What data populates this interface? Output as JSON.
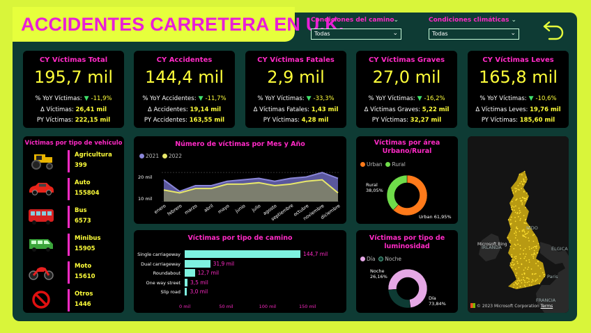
{
  "header": {
    "title": "ACCIDENTES CARRETERA EN U.K.",
    "filters": [
      {
        "label": "Condiciones del camino",
        "value": "Todas"
      },
      {
        "label": "Condiciones climáticas",
        "value": "Todas"
      }
    ],
    "back_icon": "undo-arrow-icon"
  },
  "kpis": [
    {
      "title": "CY Víctimas Total",
      "value": "195,7 mil",
      "l1_label": "% YoY Víctimas:",
      "l1_value": "-11,9%",
      "l2_label": "Δ Víctimas:",
      "l2_value": "26,41 mil",
      "l3_label": "PY Víctimas:",
      "l3_value": "222,15 mil"
    },
    {
      "title": "CY Accidentes",
      "value": "144,4 mil",
      "l1_label": "% YoY Accidentes:",
      "l1_value": "-11,7%",
      "l2_label": "Δ Accidentes:",
      "l2_value": "19,14 mil",
      "l3_label": "PY Accidentes:",
      "l3_value": "163,55 mil"
    },
    {
      "title": "CY Víctimas Fatales",
      "value": "2,9 mil",
      "l1_label": "% YoY Víctimas:",
      "l1_value": "-33,3%",
      "l2_label": "Δ Víctimas Fatales:",
      "l2_value": "1,43 mil",
      "l3_label": "PY Víctimas:",
      "l3_value": "4,28 mil"
    },
    {
      "title": "CY Víctimas Graves",
      "value": "27,0 mil",
      "l1_label": "% YoY Víctimas:",
      "l1_value": "-16,2%",
      "l2_label": "Δ Víctimas Graves:",
      "l2_value": "5,22 mil",
      "l3_label": "PY Víctimas:",
      "l3_value": "32,27 mil"
    },
    {
      "title": "CY Víctimas Leves",
      "value": "165,8 mil",
      "l1_label": "% YoY Víctimas:",
      "l1_value": "-10,6%",
      "l2_label": "Δ Víctimas Leves:",
      "l2_value": "19,76 mil",
      "l3_label": "PY Víctimas:",
      "l3_value": "185,60 mil"
    }
  ],
  "vehicles": {
    "title": "Víctimas por tipo de vehículo",
    "items": [
      {
        "name": "Agricultura",
        "value": "399",
        "icon": "tractor-icon",
        "color": "#e8b400"
      },
      {
        "name": "Auto",
        "value": "155804",
        "icon": "car-icon",
        "color": "#e8241a"
      },
      {
        "name": "Bus",
        "value": "6573",
        "icon": "bus-icon",
        "color": "#d72020"
      },
      {
        "name": "Minibus",
        "value": "15905",
        "icon": "minibus-icon",
        "color": "#3aa43a"
      },
      {
        "name": "Moto",
        "value": "15610",
        "icon": "motorcycle-icon",
        "color": "#e82020"
      },
      {
        "name": "Otros",
        "value": "1446",
        "icon": "prohibited-icon",
        "color": "#e01010"
      }
    ]
  },
  "chart_data": [
    {
      "type": "area",
      "title": "Número de víctimas por Mes y Año",
      "categories": [
        "enero",
        "febrero",
        "marzo",
        "abril",
        "mayo",
        "junio",
        "julio",
        "agosto",
        "septiembre",
        "octubre",
        "noviembre",
        "diciembre"
      ],
      "series": [
        {
          "name": "2021",
          "values": [
            17.5,
            13.5,
            15.5,
            15.5,
            17,
            17.5,
            18,
            17,
            18,
            18.5,
            20,
            18
          ],
          "color": "#8a86d8"
        },
        {
          "name": "2022",
          "values": [
            14,
            13,
            14.5,
            14.5,
            16,
            16,
            16.5,
            15.5,
            16,
            17,
            17.5,
            13
          ],
          "color": "#e8e86a"
        }
      ],
      "yticks": [
        "20 mil",
        "10 mil"
      ],
      "ylim": [
        10,
        21
      ]
    },
    {
      "type": "bar",
      "title": "Víctimas por tipo de camino",
      "categories": [
        "Single carriageway",
        "Dual carriageway",
        "Roundabout",
        "One way street",
        "Slip road"
      ],
      "values": [
        144.7,
        31.9,
        12.7,
        3.5,
        3.0
      ],
      "value_labels": [
        "144,7 mil",
        "31,9 mil",
        "12,7 mil",
        "3,5 mil",
        "3,0 mil"
      ],
      "xticks": [
        "0 mil",
        "50 mil",
        "100 mil",
        "150 mil"
      ],
      "xlim": [
        0,
        150
      ]
    },
    {
      "type": "pie",
      "title": "Víctimas por área Urbano/Rural",
      "legend": [
        "Urban",
        "Rural"
      ],
      "slices": [
        {
          "name": "Urban",
          "value": 61.95,
          "label": "Urban 61,95%",
          "color": "#ff7a1a"
        },
        {
          "name": "Rural",
          "value": 38.05,
          "label": "Rural 38,05%",
          "color": "#6fdc4a"
        }
      ]
    },
    {
      "type": "pie",
      "title": "Víctimas por tipo de luminosidad",
      "legend": [
        "Día",
        "Noche"
      ],
      "slices": [
        {
          "name": "Día",
          "value": 73.84,
          "label": "Día 73,84%",
          "color": "#e6a8e6"
        },
        {
          "name": "Noche",
          "value": 26.16,
          "label": "Noche 26,16%",
          "color": "#0e3b34"
        }
      ]
    }
  ],
  "map": {
    "labels": [
      "NIDO",
      "IRLANDA",
      "Paris",
      "FRANCIA",
      "ÉLGICA"
    ],
    "logo": "Microsoft Bing",
    "copyright": "© 2023 Microsoft Corporation",
    "terms": "Terms"
  }
}
